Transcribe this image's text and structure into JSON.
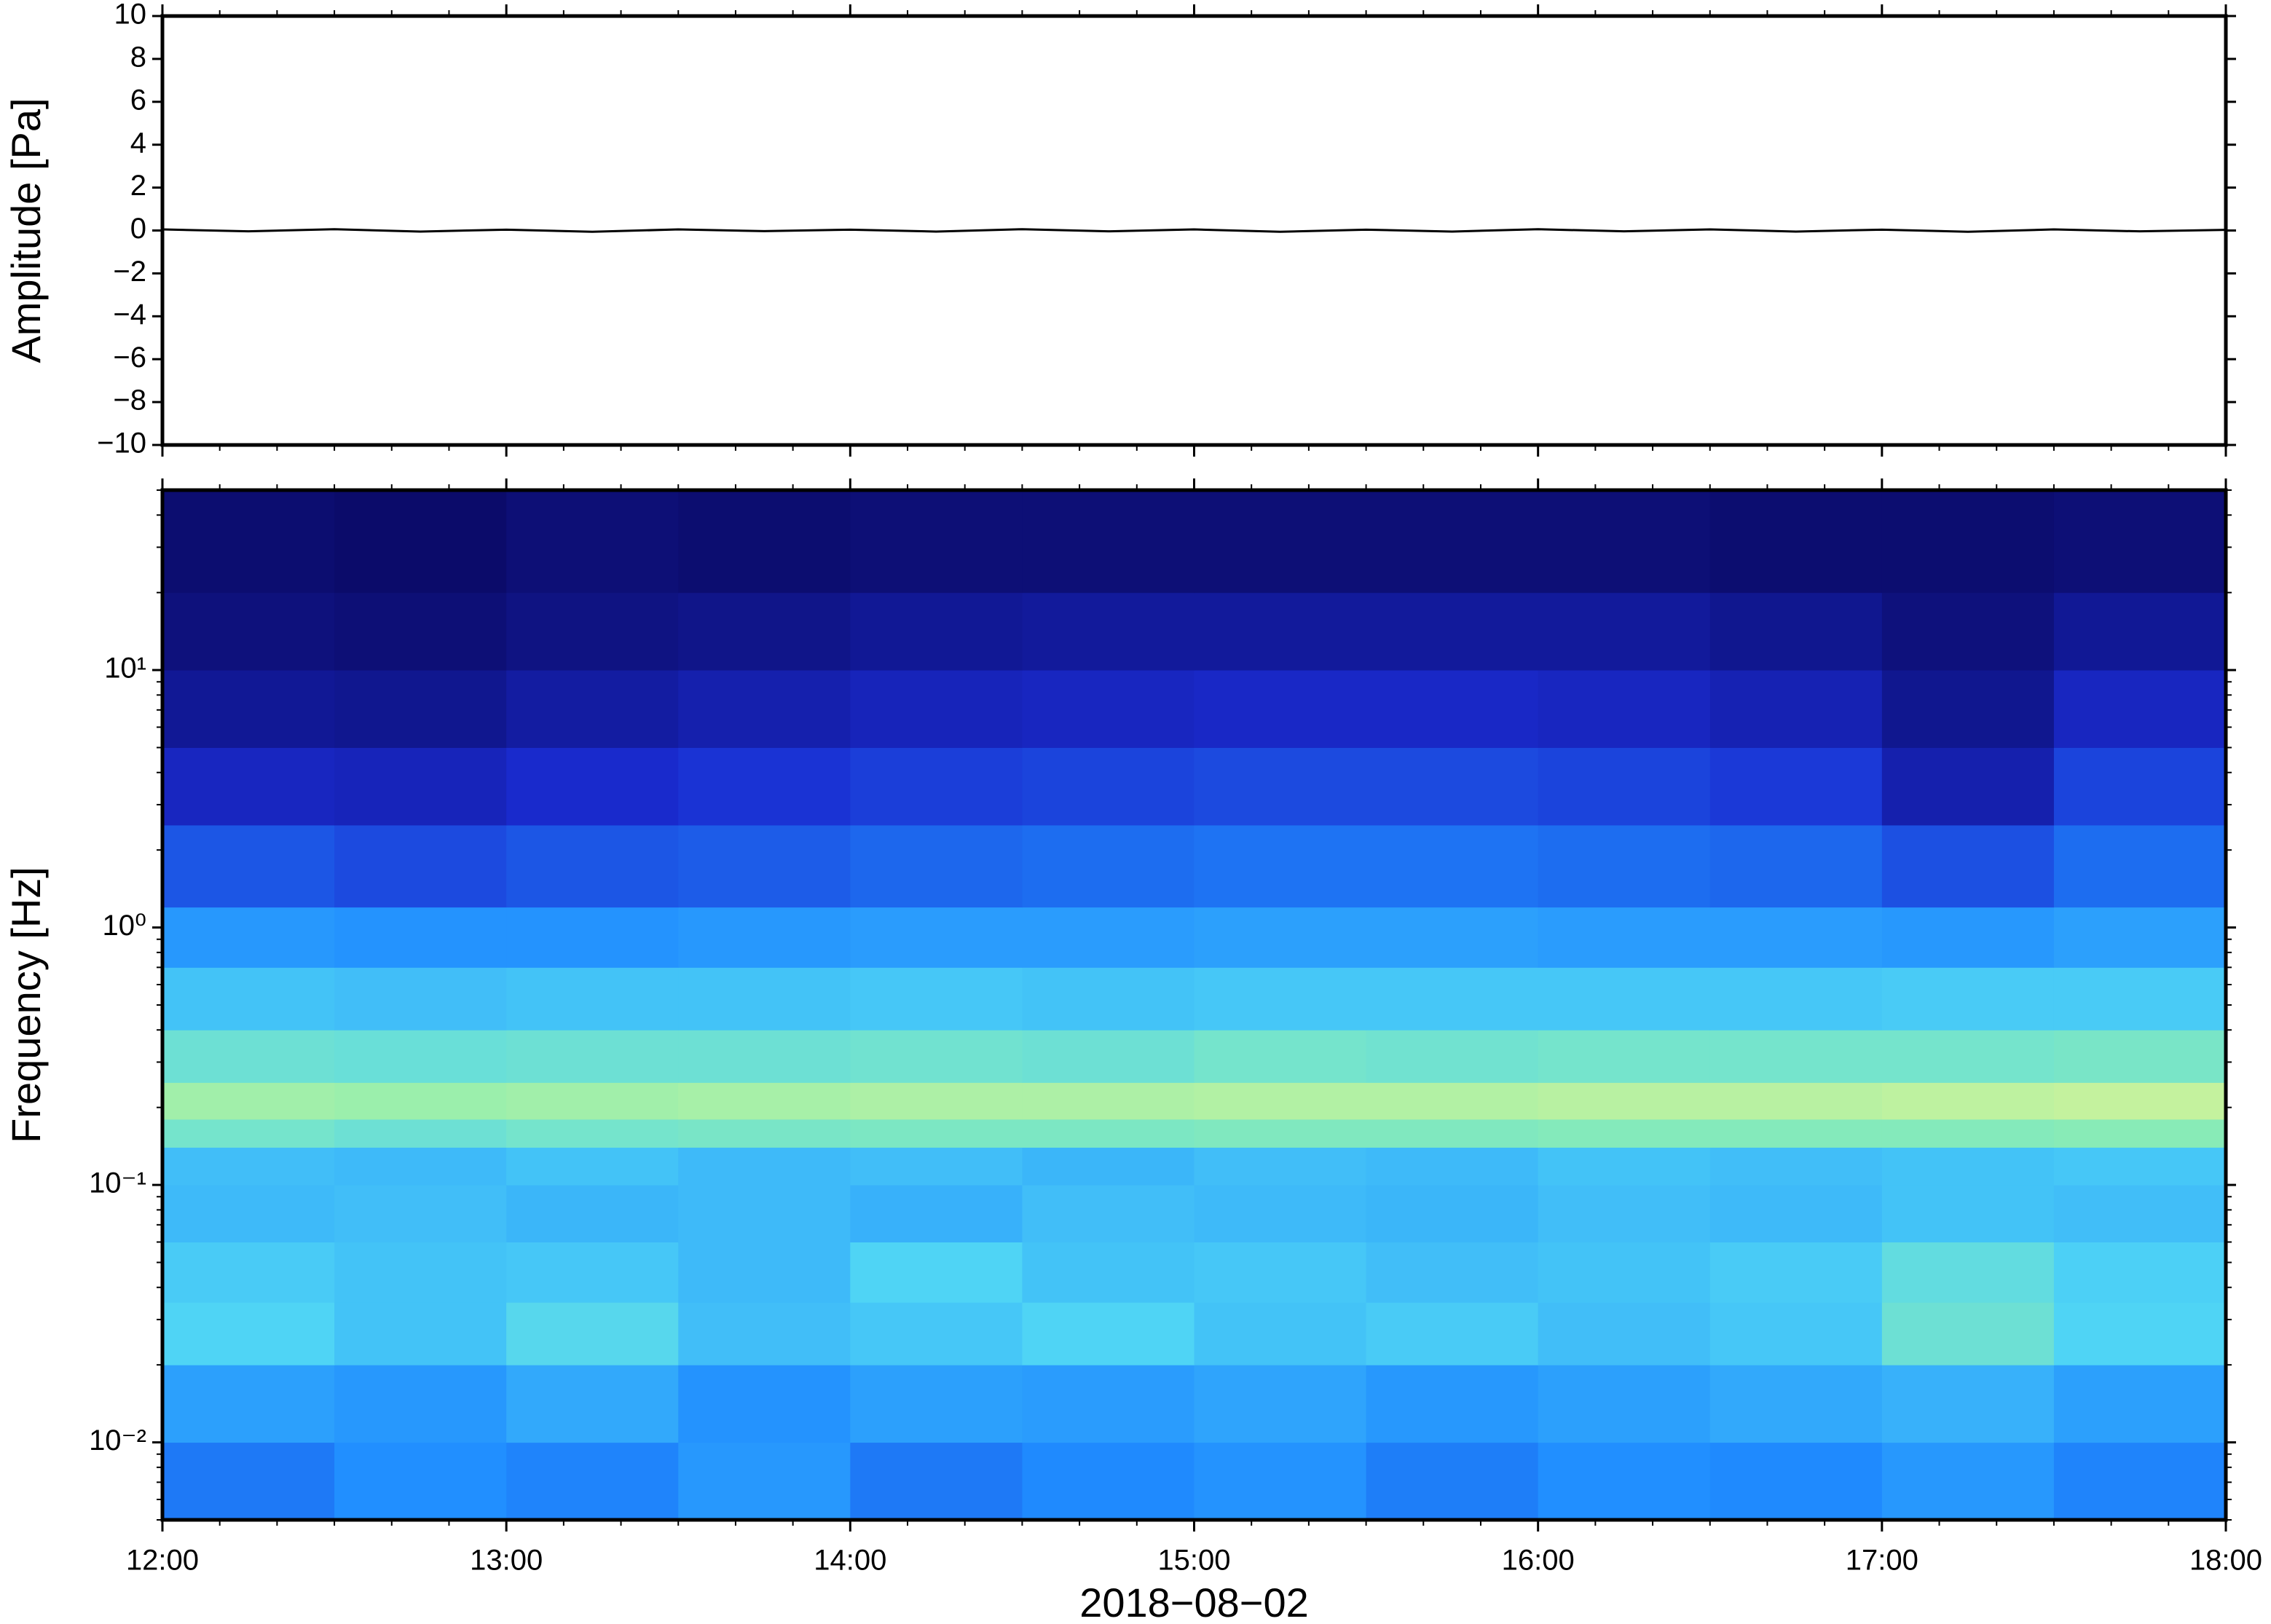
{
  "chart_data": [
    {
      "type": "line",
      "ylabel": "Amplitude [Pa]",
      "color": "#000000",
      "x": [
        12,
        12.25,
        12.5,
        12.75,
        13,
        13.25,
        13.5,
        13.75,
        14,
        14.25,
        14.5,
        14.75,
        15,
        15.25,
        15.5,
        15.75,
        16,
        16.25,
        16.5,
        16.75,
        17,
        17.25,
        17.5,
        17.75,
        18
      ],
      "values": [
        0.05,
        -0.04,
        0.06,
        -0.05,
        0.04,
        -0.06,
        0.05,
        -0.03,
        0.04,
        -0.05,
        0.06,
        -0.04,
        0.05,
        -0.06,
        0.04,
        -0.05,
        0.06,
        -0.04,
        0.05,
        -0.05,
        0.04,
        -0.06,
        0.05,
        -0.04,
        0.03
      ],
      "xlim": [
        12,
        18
      ],
      "ylim": [
        -10,
        10
      ],
      "yticks": [
        {
          "value": -10,
          "label": "−10"
        },
        {
          "value": -8,
          "label": "−8"
        },
        {
          "value": -6,
          "label": "−6"
        },
        {
          "value": -4,
          "label": "−4"
        },
        {
          "value": -2,
          "label": "−2"
        },
        0,
        2,
        4,
        6,
        8,
        10
      ]
    },
    {
      "type": "heatmap",
      "ylabel": "Frequency [Hz]",
      "xlabel": "2018−08−02",
      "log_y": true,
      "xlim": [
        12,
        18
      ],
      "ylim": [
        0.005,
        50
      ],
      "xticks": [
        {
          "value": 12,
          "label": "12:00"
        },
        {
          "value": 13,
          "label": "13:00"
        },
        {
          "value": 14,
          "label": "14:00"
        },
        {
          "value": 15,
          "label": "15:00"
        },
        {
          "value": 16,
          "label": "16:00"
        },
        {
          "value": 17,
          "label": "17:00"
        },
        {
          "value": 18,
          "label": "18:00"
        }
      ],
      "yticks": [
        {
          "value": 0.01,
          "label": "10⁻²"
        },
        {
          "value": 0.1,
          "label": "10⁻¹"
        },
        {
          "value": 1,
          "label": "10⁰"
        },
        {
          "value": 10,
          "label": "10¹"
        }
      ],
      "colormap": [
        "#0b0b6a",
        "#1a2bd0",
        "#1f8cff",
        "#4fd4f5",
        "#8eeeb0",
        "#eef590",
        "#f2a060"
      ],
      "time_bins": [
        12,
        12.5,
        13,
        13.5,
        14,
        14.5,
        15,
        15.5,
        16,
        16.5,
        17,
        17.5,
        18
      ],
      "freq_bins": [
        0.005,
        0.01,
        0.02,
        0.035,
        0.06,
        0.1,
        0.14,
        0.18,
        0.25,
        0.4,
        0.7,
        1.2,
        2.5,
        5,
        10,
        20,
        50
      ],
      "values": [
        [
          0.3,
          0.34,
          0.32,
          0.36,
          0.3,
          0.33,
          0.35,
          0.31,
          0.34,
          0.33,
          0.36,
          0.32
        ],
        [
          0.38,
          0.36,
          0.4,
          0.35,
          0.38,
          0.37,
          0.39,
          0.36,
          0.38,
          0.4,
          0.42,
          0.38
        ],
        [
          0.5,
          0.46,
          0.52,
          0.45,
          0.47,
          0.5,
          0.46,
          0.48,
          0.45,
          0.47,
          0.58,
          0.5
        ],
        [
          0.48,
          0.46,
          0.47,
          0.44,
          0.5,
          0.46,
          0.47,
          0.45,
          0.46,
          0.48,
          0.55,
          0.49
        ],
        [
          0.44,
          0.45,
          0.43,
          0.44,
          0.42,
          0.45,
          0.44,
          0.43,
          0.45,
          0.44,
          0.46,
          0.45
        ],
        [
          0.45,
          0.44,
          0.46,
          0.44,
          0.45,
          0.43,
          0.45,
          0.44,
          0.46,
          0.45,
          0.46,
          0.47
        ],
        [
          0.6,
          0.58,
          0.6,
          0.61,
          0.62,
          0.62,
          0.63,
          0.63,
          0.64,
          0.64,
          0.64,
          0.65
        ],
        [
          0.7,
          0.69,
          0.7,
          0.71,
          0.72,
          0.72,
          0.73,
          0.73,
          0.74,
          0.74,
          0.75,
          0.76
        ],
        [
          0.58,
          0.57,
          0.58,
          0.58,
          0.59,
          0.58,
          0.6,
          0.59,
          0.6,
          0.6,
          0.6,
          0.61
        ],
        [
          0.46,
          0.45,
          0.46,
          0.46,
          0.47,
          0.46,
          0.47,
          0.47,
          0.47,
          0.47,
          0.48,
          0.48
        ],
        [
          0.36,
          0.35,
          0.35,
          0.36,
          0.37,
          0.37,
          0.38,
          0.38,
          0.37,
          0.37,
          0.36,
          0.38
        ],
        [
          0.24,
          0.22,
          0.24,
          0.25,
          0.27,
          0.28,
          0.29,
          0.29,
          0.28,
          0.27,
          0.23,
          0.28
        ],
        [
          0.14,
          0.13,
          0.16,
          0.18,
          0.2,
          0.21,
          0.22,
          0.22,
          0.21,
          0.19,
          0.11,
          0.21
        ],
        [
          0.07,
          0.06,
          0.09,
          0.11,
          0.13,
          0.14,
          0.15,
          0.15,
          0.14,
          0.12,
          0.06,
          0.14
        ],
        [
          0.03,
          0.02,
          0.04,
          0.05,
          0.07,
          0.08,
          0.08,
          0.08,
          0.08,
          0.06,
          0.03,
          0.07
        ],
        [
          0.01,
          0.0,
          0.02,
          0.01,
          0.02,
          0.02,
          0.02,
          0.02,
          0.02,
          0.01,
          0.01,
          0.02
        ]
      ]
    }
  ]
}
